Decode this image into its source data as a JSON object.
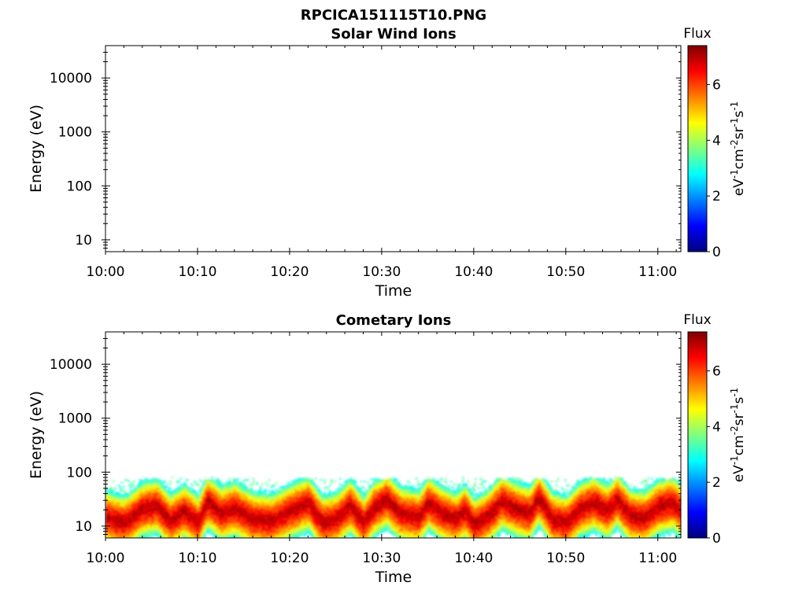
{
  "figure": {
    "title": "RPCICA151115T10.PNG"
  },
  "colors": {
    "colormap": [
      "#00007f",
      "#0000ff",
      "#007fff",
      "#00ffff",
      "#7fff7f",
      "#ffff00",
      "#ff7f00",
      "#ff0000",
      "#7f0000"
    ]
  },
  "chart_data": [
    {
      "type": "heatmap",
      "title": "Solar Wind Ions",
      "xlabel": "Time",
      "ylabel": "Energy (eV)",
      "x_ticks": [
        "10:00",
        "10:10",
        "10:20",
        "10:30",
        "10:40",
        "10:50",
        "11:00"
      ],
      "y_ticks": [
        "10",
        "100",
        "1000",
        "10000"
      ],
      "y_scale": "log",
      "x_range_minutes": [
        0,
        62.5
      ],
      "y_range_log10": [
        0.78,
        4.6
      ],
      "colorbar": {
        "label": "Flux",
        "unit": "eV-1cm-2sr-1s-1",
        "ticks": [
          "0",
          "2",
          "4",
          "6"
        ],
        "range": [
          0,
          7.4
        ]
      },
      "description_of_data": "no flux",
      "band": []
    },
    {
      "type": "heatmap",
      "title": "Cometary Ions",
      "xlabel": "Time",
      "ylabel": "Energy (eV)",
      "x_ticks": [
        "10:00",
        "10:10",
        "10:20",
        "10:30",
        "10:40",
        "10:50",
        "11:00"
      ],
      "y_ticks": [
        "10",
        "100",
        "1000",
        "10000"
      ],
      "y_scale": "log",
      "x_range_minutes": [
        0,
        62.5
      ],
      "y_range_log10": [
        0.78,
        4.6
      ],
      "colorbar": {
        "label": "Flux",
        "unit": "eV-1cm-2sr-1s-1",
        "ticks": [
          "0",
          "2",
          "4",
          "6"
        ],
        "range": [
          0,
          7.4
        ]
      },
      "band": [
        {
          "t": 0,
          "e": 15
        },
        {
          "t": 2,
          "e": 12
        },
        {
          "t": 4,
          "e": 22
        },
        {
          "t": 5.5,
          "e": 25
        },
        {
          "t": 7,
          "e": 13
        },
        {
          "t": 8.5,
          "e": 20
        },
        {
          "t": 10,
          "e": 12
        },
        {
          "t": 11,
          "e": 30
        },
        {
          "t": 12.5,
          "e": 18
        },
        {
          "t": 14,
          "e": 22
        },
        {
          "t": 16,
          "e": 14
        },
        {
          "t": 18,
          "e": 13
        },
        {
          "t": 20,
          "e": 20
        },
        {
          "t": 22,
          "e": 28
        },
        {
          "t": 23.5,
          "e": 12
        },
        {
          "t": 25,
          "e": 14
        },
        {
          "t": 26.5,
          "e": 25
        },
        {
          "t": 28,
          "e": 12
        },
        {
          "t": 29,
          "e": 22
        },
        {
          "t": 30.5,
          "e": 32
        },
        {
          "t": 32,
          "e": 18
        },
        {
          "t": 34,
          "e": 15
        },
        {
          "t": 35,
          "e": 28
        },
        {
          "t": 36.5,
          "e": 18
        },
        {
          "t": 38,
          "e": 14
        },
        {
          "t": 39,
          "e": 20
        },
        {
          "t": 40,
          "e": 11
        },
        {
          "t": 41.5,
          "e": 16
        },
        {
          "t": 43,
          "e": 30
        },
        {
          "t": 44.5,
          "e": 22
        },
        {
          "t": 46,
          "e": 18
        },
        {
          "t": 47,
          "e": 35
        },
        {
          "t": 48.5,
          "e": 14
        },
        {
          "t": 50,
          "e": 12
        },
        {
          "t": 51.5,
          "e": 22
        },
        {
          "t": 53,
          "e": 28
        },
        {
          "t": 54.5,
          "e": 20
        },
        {
          "t": 55.5,
          "e": 32
        },
        {
          "t": 57,
          "e": 16
        },
        {
          "t": 58.5,
          "e": 15
        },
        {
          "t": 60,
          "e": 24
        },
        {
          "t": 61.5,
          "e": 28
        },
        {
          "t": 62.5,
          "e": 20
        }
      ]
    }
  ]
}
